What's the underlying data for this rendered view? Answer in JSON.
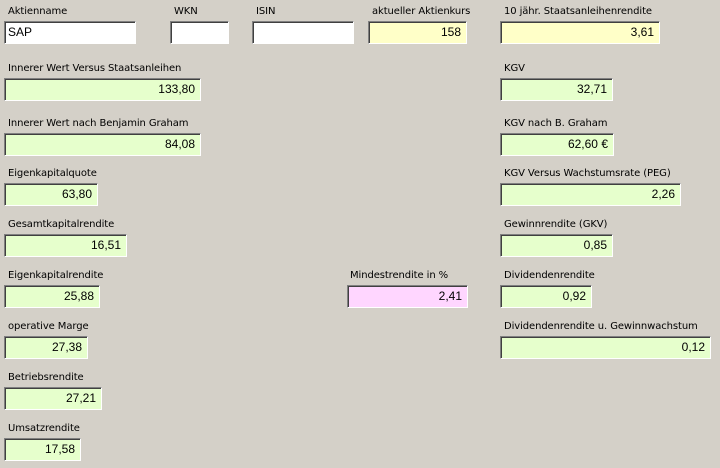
{
  "header": {
    "stock_name": {
      "label": "Aktienname",
      "value": "SAP"
    },
    "wkn": {
      "label": "WKN",
      "value": ""
    },
    "isin": {
      "label": "ISIN",
      "value": ""
    },
    "current_price": {
      "label": "aktueller Aktienkurs",
      "value": "158"
    },
    "bond_yield": {
      "label": "10 jähr. Staatsanleihenrendite",
      "value": "3,61"
    }
  },
  "left": {
    "intrinsic_vs_bonds": {
      "label": "Innerer Wert Versus Staatsanleihen",
      "value": "133,80"
    },
    "intrinsic_graham": {
      "label": "Innerer Wert nach Benjamin Graham",
      "value": "84,08"
    },
    "equity_ratio": {
      "label": "Eigenkapitalquote",
      "value": "63,80"
    },
    "return_on_assets": {
      "label": "Gesamtkapitalrendite",
      "value": "16,51"
    },
    "return_on_equity": {
      "label": "Eigenkapitalrendite",
      "value": "25,88"
    },
    "operating_margin": {
      "label": "operative Marge",
      "value": "27,38"
    },
    "operating_return": {
      "label": "Betriebsrendite",
      "value": "27,21"
    },
    "sales_return": {
      "label": "Umsatzrendite",
      "value": "17,58"
    }
  },
  "middle": {
    "min_return": {
      "label": "Mindestrendite in %",
      "value": "2,41"
    }
  },
  "right": {
    "pe": {
      "label": "KGV",
      "value": "32,71"
    },
    "pe_graham": {
      "label": "KGV nach B. Graham",
      "value": "62,60 €"
    },
    "peg": {
      "label": "KGV Versus Wachstumsrate (PEG)",
      "value": "2,26"
    },
    "earnings_yield": {
      "label": "Gewinnrendite (GKV)",
      "value": "0,85"
    },
    "dividend_yield": {
      "label": "Dividendenrendite",
      "value": "0,92"
    },
    "dividend_growth": {
      "label": "Dividendenrendite u. Gewinnwachstum",
      "value": "0,12"
    }
  }
}
